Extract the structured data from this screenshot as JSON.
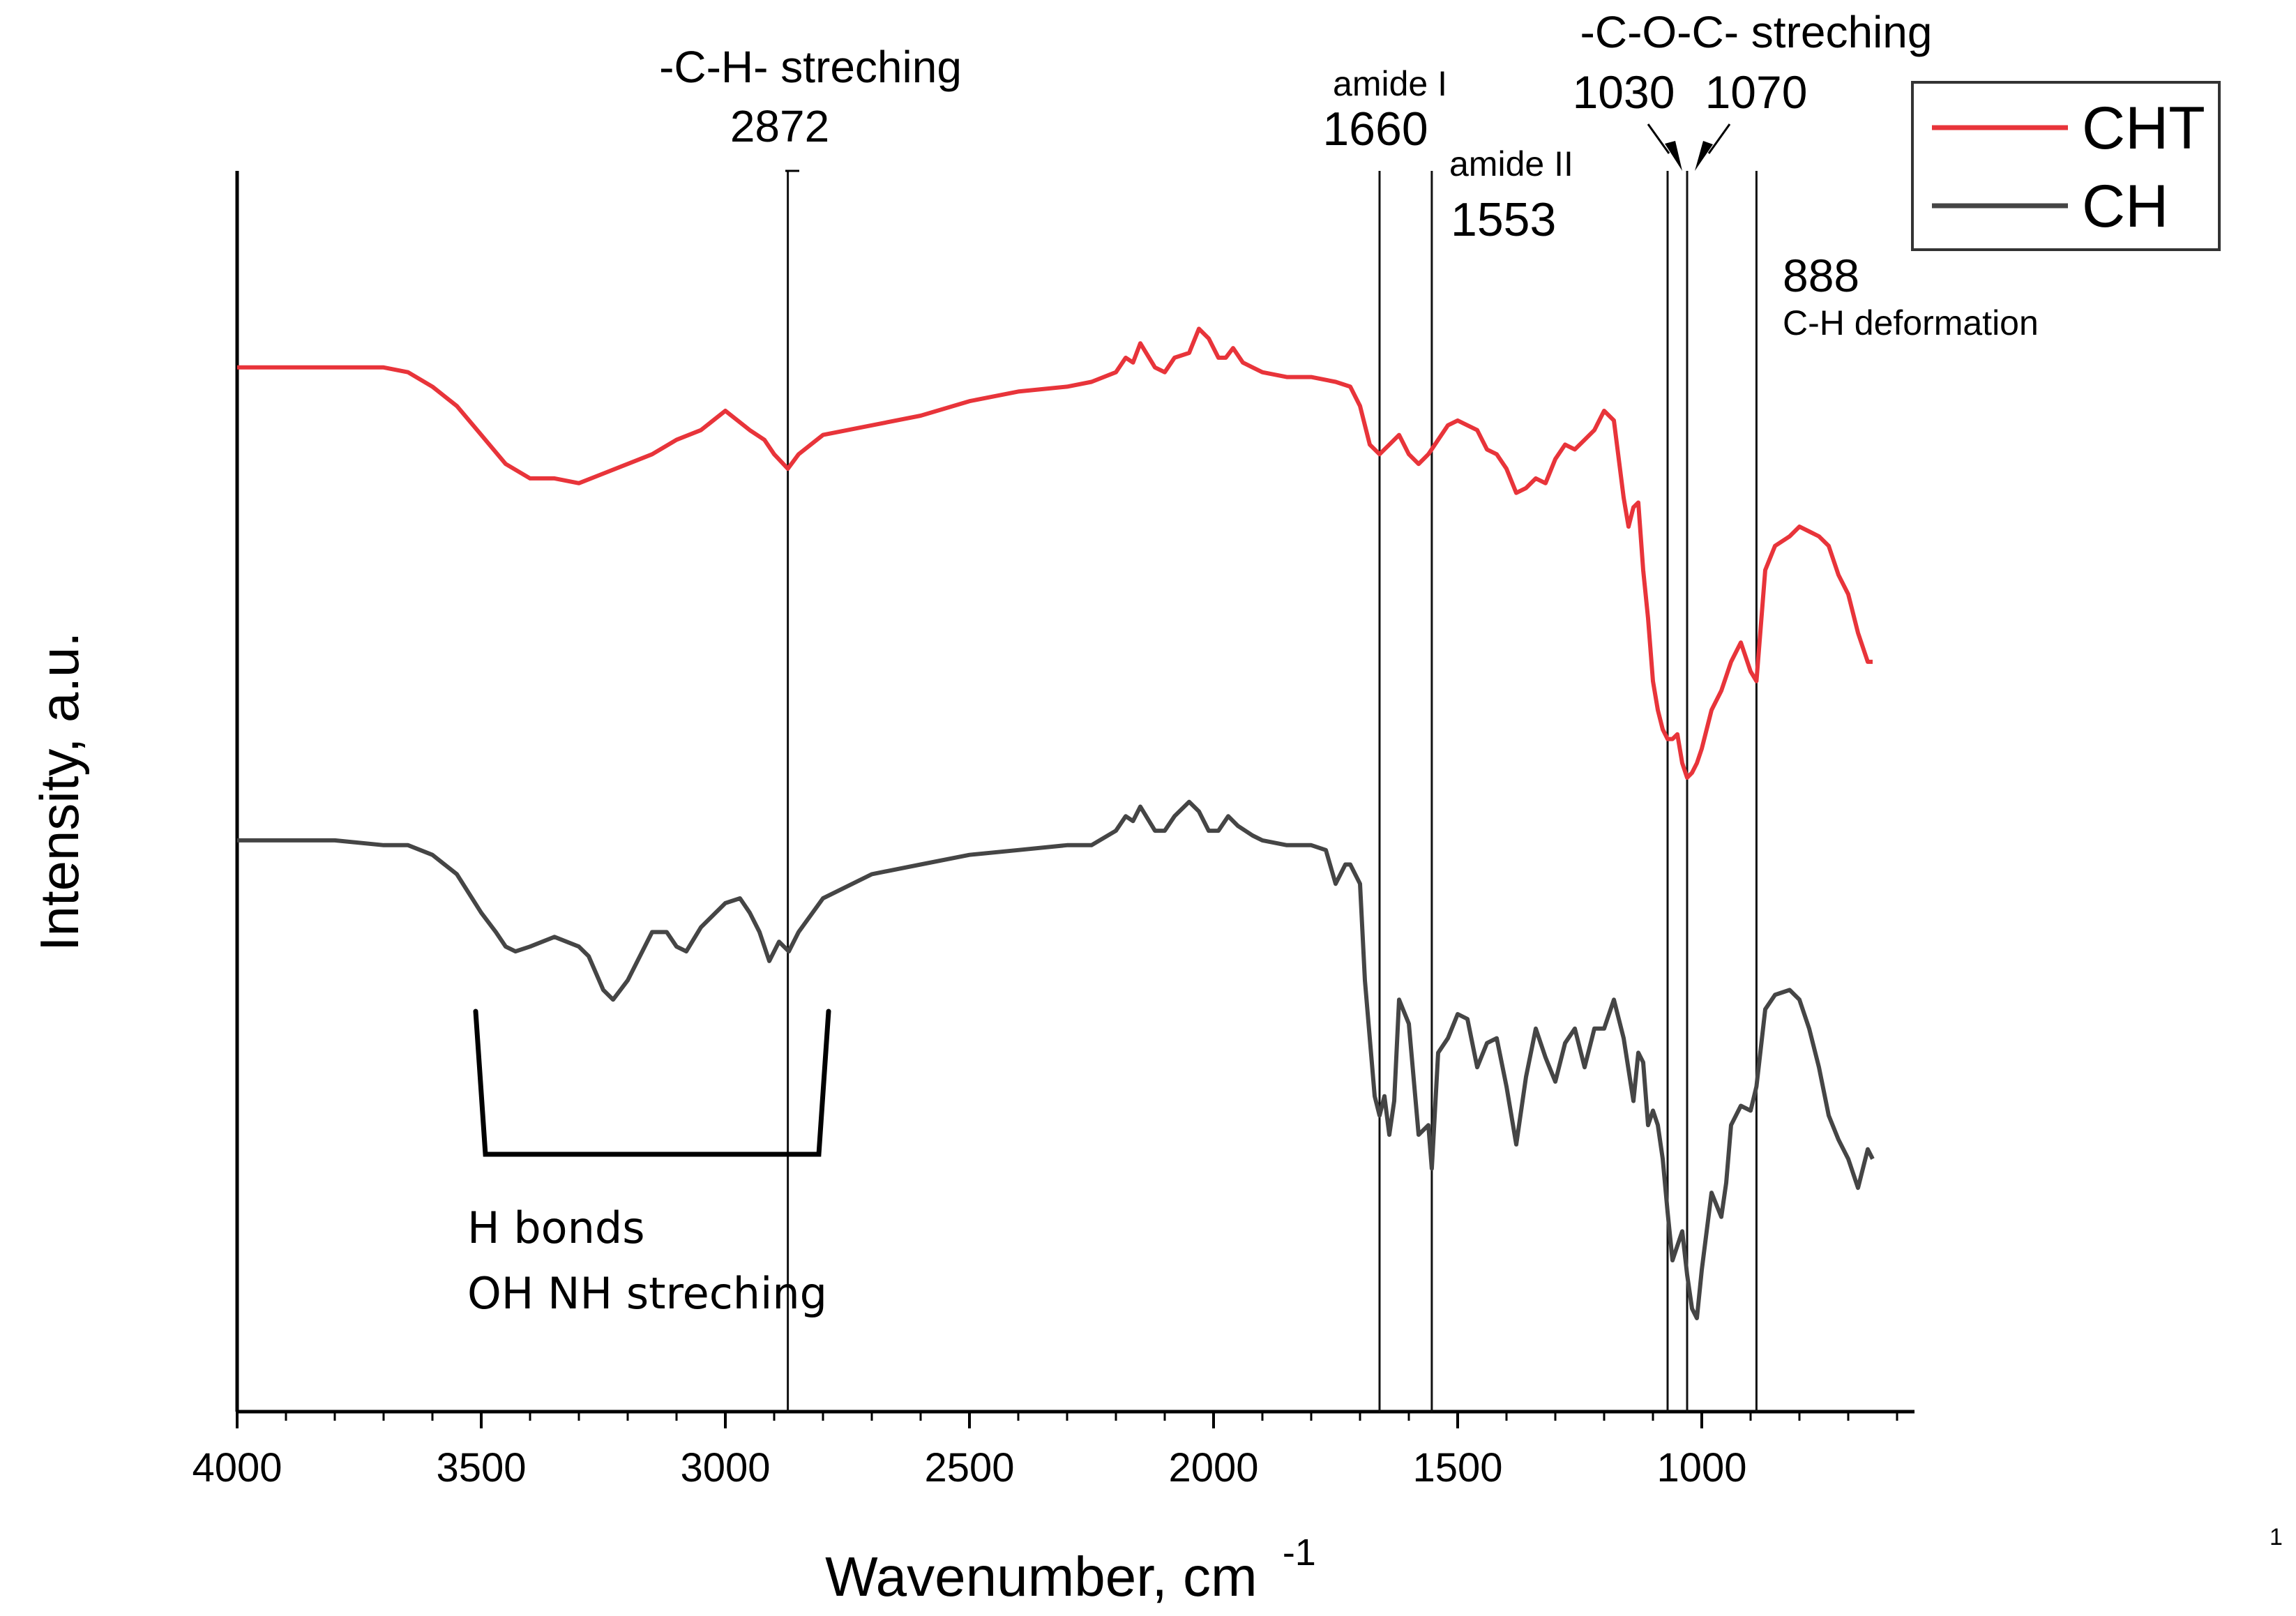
{
  "page_number": "1",
  "colors": {
    "cht": "#e8343a",
    "ch": "#454545",
    "axis": "#000000",
    "marker": "#111111"
  },
  "chart_data": {
    "type": "line",
    "xlabel": "Wavenumber, cm",
    "xlabel_sup": "-1",
    "ylabel": "Intensity, a.u.",
    "xlim": [
      4000,
      580
    ],
    "x_reversed": true,
    "xticks": [
      4000,
      3500,
      3000,
      2500,
      2000,
      1500,
      1000
    ],
    "xtick_labels": [
      "4000",
      "3500",
      "3000",
      "2500",
      "2000",
      "1500",
      "1000"
    ],
    "grid": false,
    "legend": {
      "position": "top-right",
      "entries": [
        "CHT",
        "CH"
      ]
    },
    "series": [
      {
        "name": "CHT",
        "color": "#e8343a",
        "x": [
          4000,
          3900,
          3800,
          3700,
          3650,
          3600,
          3550,
          3500,
          3450,
          3400,
          3350,
          3300,
          3250,
          3200,
          3150,
          3100,
          3050,
          3000,
          2950,
          2920,
          2900,
          2872,
          2850,
          2800,
          2700,
          2600,
          2500,
          2400,
          2300,
          2250,
          2200,
          2180,
          2165,
          2150,
          2120,
          2100,
          2080,
          2050,
          2030,
          2010,
          1990,
          1975,
          1960,
          1940,
          1920,
          1900,
          1850,
          1800,
          1750,
          1720,
          1700,
          1680,
          1660,
          1640,
          1620,
          1600,
          1580,
          1560,
          1540,
          1520,
          1500,
          1480,
          1460,
          1440,
          1420,
          1400,
          1380,
          1360,
          1340,
          1320,
          1300,
          1280,
          1260,
          1240,
          1220,
          1200,
          1180,
          1160,
          1150,
          1140,
          1130,
          1120,
          1110,
          1100,
          1090,
          1080,
          1070,
          1060,
          1050,
          1040,
          1030,
          1020,
          1010,
          1000,
          980,
          960,
          940,
          920,
          900,
          888,
          870,
          850,
          820,
          800,
          780,
          760,
          740,
          720,
          700,
          680,
          660,
          650
        ],
        "y": [
          1.97,
          1.97,
          1.97,
          1.97,
          1.96,
          1.93,
          1.89,
          1.83,
          1.77,
          1.74,
          1.74,
          1.73,
          1.75,
          1.77,
          1.79,
          1.82,
          1.84,
          1.88,
          1.84,
          1.82,
          1.79,
          1.76,
          1.79,
          1.83,
          1.85,
          1.87,
          1.9,
          1.92,
          1.93,
          1.94,
          1.96,
          1.99,
          1.98,
          2.02,
          1.97,
          1.96,
          1.99,
          2.0,
          2.05,
          2.03,
          1.99,
          1.99,
          2.01,
          1.98,
          1.97,
          1.96,
          1.95,
          1.95,
          1.94,
          1.93,
          1.89,
          1.81,
          1.79,
          1.81,
          1.83,
          1.79,
          1.77,
          1.79,
          1.82,
          1.85,
          1.86,
          1.85,
          1.84,
          1.8,
          1.79,
          1.76,
          1.71,
          1.72,
          1.74,
          1.73,
          1.78,
          1.81,
          1.8,
          1.82,
          1.84,
          1.88,
          1.86,
          1.7,
          1.64,
          1.68,
          1.69,
          1.55,
          1.45,
          1.32,
          1.26,
          1.22,
          1.2,
          1.2,
          1.21,
          1.15,
          1.12,
          1.13,
          1.15,
          1.18,
          1.26,
          1.3,
          1.36,
          1.4,
          1.34,
          1.32,
          1.55,
          1.6,
          1.62,
          1.64,
          1.63,
          1.62,
          1.6,
          1.54,
          1.5,
          1.42,
          1.36,
          1.36
        ]
      },
      {
        "name": "CH",
        "color": "#454545",
        "x": [
          4000,
          3900,
          3800,
          3700,
          3650,
          3600,
          3550,
          3500,
          3470,
          3450,
          3430,
          3400,
          3350,
          3300,
          3280,
          3250,
          3230,
          3200,
          3180,
          3150,
          3120,
          3100,
          3080,
          3050,
          3000,
          2970,
          2950,
          2930,
          2910,
          2890,
          2870,
          2850,
          2800,
          2700,
          2600,
          2500,
          2400,
          2300,
          2250,
          2200,
          2180,
          2165,
          2150,
          2120,
          2100,
          2080,
          2050,
          2030,
          2010,
          1990,
          1970,
          1950,
          1920,
          1900,
          1850,
          1800,
          1770,
          1750,
          1730,
          1720,
          1700,
          1690,
          1670,
          1660,
          1650,
          1640,
          1630,
          1620,
          1600,
          1580,
          1560,
          1553,
          1540,
          1520,
          1500,
          1480,
          1460,
          1440,
          1420,
          1400,
          1380,
          1360,
          1340,
          1320,
          1300,
          1280,
          1260,
          1240,
          1220,
          1200,
          1180,
          1160,
          1140,
          1130,
          1120,
          1110,
          1100,
          1090,
          1080,
          1070,
          1060,
          1050,
          1040,
          1030,
          1020,
          1010,
          1000,
          980,
          960,
          950,
          940,
          920,
          900,
          888,
          870,
          850,
          820,
          800,
          780,
          760,
          740,
          720,
          700,
          680,
          660,
          650
        ],
        "y": [
          0.99,
          0.99,
          0.99,
          0.98,
          0.98,
          0.96,
          0.92,
          0.84,
          0.8,
          0.77,
          0.76,
          0.77,
          0.79,
          0.77,
          0.75,
          0.68,
          0.66,
          0.7,
          0.74,
          0.8,
          0.8,
          0.77,
          0.76,
          0.81,
          0.86,
          0.87,
          0.84,
          0.8,
          0.74,
          0.78,
          0.76,
          0.8,
          0.87,
          0.92,
          0.94,
          0.96,
          0.97,
          0.98,
          0.98,
          1.01,
          1.04,
          1.03,
          1.06,
          1.01,
          1.01,
          1.04,
          1.07,
          1.05,
          1.01,
          1.01,
          1.04,
          1.02,
          1.0,
          0.99,
          0.98,
          0.98,
          0.97,
          0.9,
          0.94,
          0.94,
          0.9,
          0.7,
          0.46,
          0.42,
          0.46,
          0.38,
          0.45,
          0.66,
          0.61,
          0.38,
          0.4,
          0.31,
          0.55,
          0.58,
          0.63,
          0.62,
          0.52,
          0.57,
          0.58,
          0.48,
          0.36,
          0.5,
          0.6,
          0.54,
          0.49,
          0.57,
          0.6,
          0.52,
          0.6,
          0.6,
          0.66,
          0.58,
          0.45,
          0.55,
          0.53,
          0.4,
          0.43,
          0.4,
          0.33,
          0.22,
          0.12,
          0.15,
          0.18,
          0.09,
          0.02,
          0.0,
          0.1,
          0.26,
          0.21,
          0.28,
          0.4,
          0.44,
          0.43,
          0.48,
          0.64,
          0.67,
          0.68,
          0.66,
          0.6,
          0.52,
          0.42,
          0.37,
          0.33,
          0.27,
          0.35,
          0.33
        ]
      }
    ],
    "reference_lines": [
      2872,
      1660,
      1553,
      1070,
      1030,
      888
    ],
    "annotations": {
      "ch_stretch_title": "-C-H- streching",
      "ch_stretch_value": "2872",
      "amide1_title": "amide I",
      "amide1_value": "1660",
      "amide2_title": "amide II",
      "amide2_value": "1553",
      "coc_title": "-C-O-C- streching",
      "coc_value1": "1030",
      "coc_value2": "1070",
      "ch_def_value": "888",
      "ch_def_title": "C-H deformation",
      "hbond_line1": "H bonds",
      "hbond_line2": "OH NH streching",
      "hbond_range": [
        3500,
        2800
      ]
    }
  }
}
